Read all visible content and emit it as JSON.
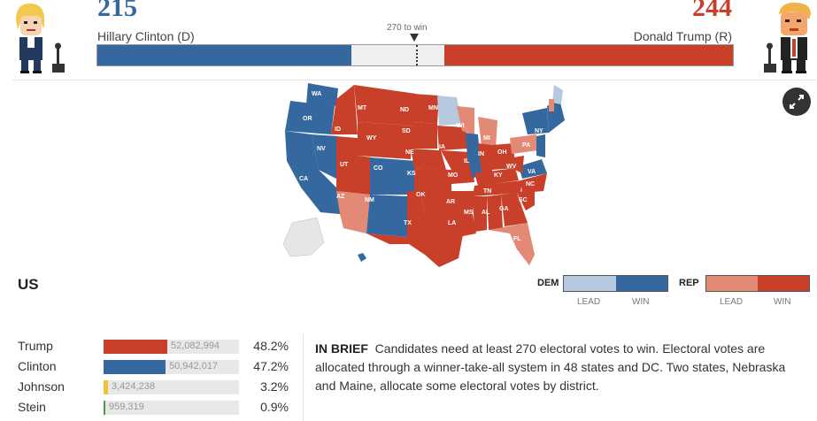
{
  "header": {
    "dem": {
      "votes": "215",
      "name": "Hillary Clinton (D)",
      "color": "#34689f"
    },
    "rep": {
      "votes": "244",
      "name": "Donald Trump (R)",
      "color": "#c8402a"
    },
    "threshold_label": "270 to win",
    "total_electoral_votes": 538,
    "threshold_votes": 270
  },
  "map": {
    "region_label": "US",
    "expand_icon": "expand-arrows-icon",
    "state_labels": [
      "WA",
      "OR",
      "NV",
      "CA",
      "ID",
      "MT",
      "WY",
      "UT",
      "CO",
      "AZ",
      "NM",
      "ND",
      "SD",
      "NE",
      "KS",
      "OK",
      "TX",
      "MN",
      "IA",
      "MO",
      "AR",
      "LA",
      "WI",
      "IL",
      "MI",
      "IN",
      "OH",
      "KY",
      "TN",
      "MS",
      "AL",
      "GA",
      "FL",
      "SC",
      "NC",
      "VA",
      "WV",
      "PA",
      "NY",
      "HI"
    ]
  },
  "legend": {
    "dem": {
      "label": "DEM",
      "lead": "LEAD",
      "win": "WIN",
      "lead_color": "#b7c9df",
      "win_color": "#34689f"
    },
    "rep": {
      "label": "REP",
      "lead": "LEAD",
      "win": "WIN",
      "lead_color": "#e38a77",
      "win_color": "#c8402a"
    }
  },
  "results": [
    {
      "name": "Trump",
      "votes": "52,082,994",
      "pct": "48.2%",
      "share": 0.482,
      "color": "#c8402a"
    },
    {
      "name": "Clinton",
      "votes": "50,942,017",
      "pct": "47.2%",
      "share": 0.472,
      "color": "#34689f"
    },
    {
      "name": "Johnson",
      "votes": "3,424,238",
      "pct": "3.2%",
      "share": 0.032,
      "color": "#f0c23a"
    },
    {
      "name": "Stein",
      "votes": "959,319",
      "pct": "0.9%",
      "share": 0.009,
      "color": "#4a9a40"
    }
  ],
  "brief": {
    "heading": "IN BRIEF",
    "text": "Candidates need at least 270 electoral votes to win. Electoral votes are allocated through a winner-take-all system in 48 states and DC. Two states, Nebraska and Maine, allocate some electoral votes by district."
  }
}
